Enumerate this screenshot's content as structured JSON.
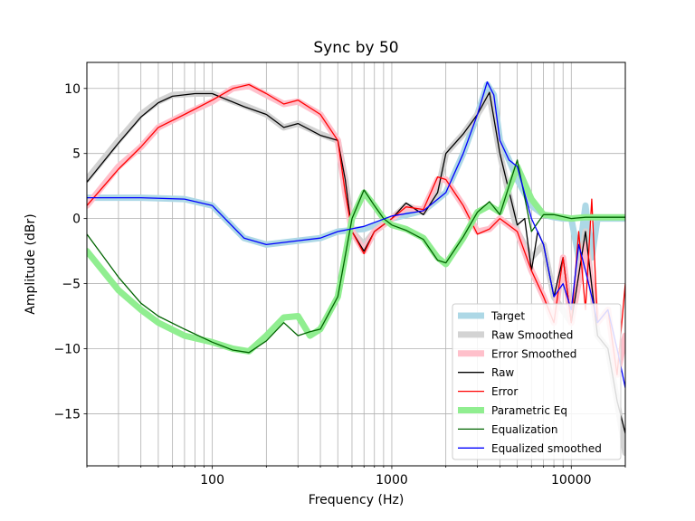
{
  "chart_data": {
    "type": "line",
    "title": "Sync by 50",
    "xlabel": "Frequency (Hz)",
    "ylabel": "Amplitude (dBr)",
    "xscale": "log",
    "xlim": [
      20,
      20000
    ],
    "ylim": [
      -19,
      12
    ],
    "grid": true,
    "legend_position": "bottom-right",
    "x_ticks": [
      {
        "value": 100,
        "label": "100"
      },
      {
        "value": 1000,
        "label": "1000"
      },
      {
        "value": 10000,
        "label": "10000"
      }
    ],
    "y_ticks": [
      {
        "value": 10,
        "label": "10"
      },
      {
        "value": 5,
        "label": "5"
      },
      {
        "value": 0,
        "label": "0"
      },
      {
        "value": -5,
        "label": "−5"
      },
      {
        "value": -10,
        "label": "−10"
      },
      {
        "value": -15,
        "label": "−15"
      }
    ],
    "series": [
      {
        "name": "Target",
        "color": "#add8e6",
        "style": "thick",
        "x": [
          20,
          40,
          70,
          100,
          150,
          200,
          300,
          400,
          500,
          700,
          1000,
          1500,
          2000,
          2500,
          3000,
          3400,
          3700,
          4000,
          4500,
          5000,
          6000,
          7000,
          8000,
          9000,
          10000,
          11000,
          12000,
          13000,
          14000,
          16000,
          18000,
          20000
        ],
        "y": [
          1.6,
          1.6,
          1.5,
          1.0,
          -1.5,
          -2.0,
          -1.7,
          -1.5,
          -1.0,
          -0.8,
          0.0,
          0.6,
          2.0,
          5.0,
          8.0,
          10.3,
          9.5,
          6.0,
          4.5,
          3.0,
          1.0,
          0.3,
          0.1,
          0.0,
          0.0,
          -3.0,
          1.0,
          -3.0,
          0.0,
          0.0,
          0.0,
          0.0
        ]
      },
      {
        "name": "Raw Smoothed",
        "color": "#d3d3d3",
        "style": "thick",
        "x": [
          20,
          30,
          40,
          50,
          60,
          80,
          100,
          150,
          200,
          250,
          300,
          400,
          500,
          550,
          600,
          700,
          800,
          1000,
          1200,
          1500,
          1800,
          2000,
          2500,
          3000,
          3500,
          4000,
          5000,
          6000,
          7000,
          8000,
          10000,
          12000,
          14000,
          16000,
          18000,
          20000
        ],
        "y": [
          3.0,
          6.0,
          8.0,
          9.0,
          9.5,
          9.6,
          9.6,
          8.7,
          8.0,
          7.0,
          7.3,
          6.5,
          6.0,
          3.0,
          -1.0,
          -2.0,
          -1.0,
          0.0,
          1.0,
          0.5,
          2.0,
          5.0,
          6.5,
          8.0,
          9.5,
          5.0,
          -1.0,
          -3.0,
          -2.0,
          -6.0,
          -8.0,
          -1.0,
          -9.0,
          -10.0,
          -14.0,
          -18.0
        ]
      },
      {
        "name": "Error Smoothed",
        "color": "#ffc0cb",
        "style": "thick",
        "x": [
          20,
          30,
          40,
          50,
          70,
          100,
          130,
          160,
          200,
          250,
          300,
          400,
          500,
          550,
          600,
          700,
          800,
          1000,
          1200,
          1500,
          1800,
          2000,
          2500,
          3000,
          3500,
          4000,
          5000,
          6000,
          7000,
          8000,
          9000,
          10000,
          12000,
          14000,
          16000,
          18000,
          20000
        ],
        "y": [
          1.0,
          4.0,
          5.5,
          7.0,
          8.0,
          9.0,
          10.0,
          10.2,
          9.5,
          8.8,
          9.0,
          8.0,
          6.0,
          2.0,
          -1.0,
          -2.5,
          -1.0,
          0.0,
          0.8,
          0.7,
          3.0,
          3.0,
          1.0,
          -1.0,
          -0.8,
          0.0,
          -1.0,
          -4.0,
          -6.0,
          -8.0,
          -3.0,
          -8.0,
          -2.0,
          -8.0,
          -7.0,
          -12.0,
          -9.0
        ]
      },
      {
        "name": "Raw",
        "color": "#000000",
        "style": "thin",
        "x": [
          20,
          30,
          40,
          50,
          60,
          80,
          100,
          150,
          200,
          250,
          300,
          400,
          500,
          550,
          600,
          700,
          800,
          1000,
          1200,
          1500,
          1800,
          2000,
          2500,
          3000,
          3500,
          4000,
          5000,
          5500,
          6000,
          6500,
          7000,
          8000,
          9000,
          10000,
          12000,
          14000,
          16000,
          18000,
          20000
        ],
        "y": [
          2.8,
          5.8,
          7.8,
          8.9,
          9.4,
          9.6,
          9.6,
          8.6,
          8.0,
          7.0,
          7.3,
          6.4,
          6.0,
          3.0,
          -1.0,
          -2.5,
          -1.0,
          0.0,
          1.2,
          0.3,
          2.0,
          5.0,
          6.5,
          8.0,
          9.7,
          5.0,
          -0.5,
          0.0,
          -4.0,
          -1.0,
          -2.0,
          -6.0,
          -3.0,
          -8.0,
          -1.0,
          -9.0,
          -10.0,
          -14.0,
          -16.5
        ]
      },
      {
        "name": "Error",
        "color": "#ff0000",
        "style": "thin",
        "x": [
          20,
          30,
          40,
          50,
          70,
          100,
          130,
          160,
          200,
          250,
          300,
          400,
          500,
          550,
          600,
          700,
          800,
          1000,
          1200,
          1500,
          1800,
          2000,
          2500,
          3000,
          3500,
          4000,
          5000,
          6000,
          7000,
          8000,
          9000,
          10000,
          11000,
          12000,
          13000,
          14000,
          16000,
          18000,
          20000
        ],
        "y": [
          1.0,
          3.8,
          5.5,
          7.0,
          8.0,
          9.1,
          10.0,
          10.3,
          9.6,
          8.8,
          9.1,
          8.0,
          6.0,
          2.0,
          -1.0,
          -2.7,
          -1.0,
          0.0,
          0.9,
          0.7,
          3.2,
          3.0,
          1.0,
          -1.2,
          -0.8,
          0.0,
          -1.0,
          -4.0,
          -6.0,
          -8.0,
          -3.0,
          -8.0,
          -1.0,
          -7.0,
          1.5,
          -8.0,
          -7.0,
          -12.0,
          -5.0
        ]
      },
      {
        "name": "Parametric Eq",
        "color": "#90ee90",
        "style": "thick",
        "x": [
          20,
          30,
          40,
          50,
          70,
          100,
          130,
          160,
          200,
          250,
          300,
          350,
          400,
          500,
          600,
          700,
          800,
          900,
          1000,
          1200,
          1500,
          1800,
          2000,
          2500,
          3000,
          3500,
          4000,
          5000,
          6000,
          7000,
          8000,
          10000,
          12000,
          14000,
          16000,
          18000,
          20000
        ],
        "y": [
          -2.5,
          -5.5,
          -7.0,
          -8.0,
          -9.0,
          -9.5,
          -10.0,
          -10.2,
          -9.0,
          -7.6,
          -7.5,
          -9.0,
          -8.5,
          -6.0,
          0.0,
          2.0,
          1.0,
          0.0,
          -0.5,
          -0.8,
          -1.5,
          -3.0,
          -3.5,
          -1.5,
          0.5,
          1.0,
          0.5,
          4.0,
          1.5,
          0.3,
          0.2,
          0.0,
          0.1,
          0.1,
          0.1,
          0.1,
          0.1
        ]
      },
      {
        "name": "Equalization",
        "color": "#006400",
        "style": "thin",
        "x": [
          20,
          30,
          40,
          50,
          70,
          100,
          130,
          160,
          200,
          250,
          300,
          350,
          400,
          500,
          600,
          700,
          800,
          900,
          1000,
          1200,
          1500,
          1800,
          2000,
          2500,
          3000,
          3500,
          4000,
          5000,
          6000,
          7000,
          8000,
          10000,
          12000,
          14000,
          16000,
          18000,
          20000
        ],
        "y": [
          -1.2,
          -4.5,
          -6.5,
          -7.5,
          -8.5,
          -9.5,
          -10.1,
          -10.3,
          -9.4,
          -8.0,
          -9.0,
          -8.7,
          -8.5,
          -6.0,
          0.0,
          2.2,
          1.0,
          0.0,
          -0.5,
          -0.9,
          -1.6,
          -3.2,
          -3.4,
          -1.4,
          0.5,
          1.3,
          0.3,
          4.5,
          -1.0,
          0.3,
          0.3,
          0.0,
          0.1,
          0.1,
          0.1,
          0.1,
          0.1
        ]
      },
      {
        "name": "Equalized smoothed",
        "color": "#0000ff",
        "style": "thin",
        "x": [
          20,
          40,
          70,
          100,
          150,
          200,
          300,
          400,
          500,
          700,
          1000,
          1500,
          2000,
          2500,
          3000,
          3400,
          3700,
          4000,
          4500,
          5000,
          6000,
          7000,
          8000,
          9000,
          10000,
          11000,
          12000,
          13000,
          14000,
          16000,
          18000,
          20000
        ],
        "y": [
          1.6,
          1.6,
          1.5,
          1.0,
          -1.5,
          -2.0,
          -1.7,
          -1.5,
          -1.0,
          -0.6,
          0.2,
          0.6,
          2.0,
          5.0,
          8.0,
          10.5,
          9.5,
          6.0,
          4.5,
          4.0,
          0.0,
          -2.0,
          -6.0,
          -5.0,
          -7.0,
          -2.0,
          -4.0,
          -6.0,
          -8.0,
          -7.0,
          -10.0,
          -13.0
        ]
      }
    ]
  }
}
